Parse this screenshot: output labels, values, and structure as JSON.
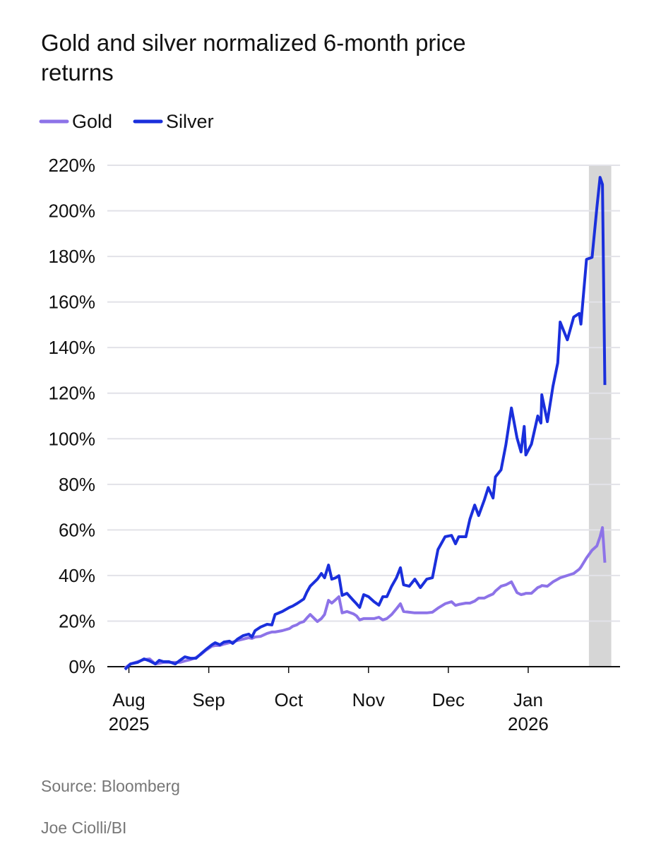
{
  "chart_data": {
    "type": "line",
    "title": "Gold and silver normalized 6-month price returns",
    "source": "Source: Bloomberg",
    "credit": "Joe Ciolli/BI",
    "x": [
      -0.05,
      0.02,
      0.11,
      0.19,
      0.26,
      0.33,
      0.38,
      0.43,
      0.5,
      0.58,
      0.64,
      0.7,
      0.77,
      0.84,
      0.91,
      0.96,
      1.04,
      1.08,
      1.14,
      1.19,
      1.26,
      1.3,
      1.36,
      1.43,
      1.5,
      1.54,
      1.58,
      1.65,
      1.73,
      1.79,
      1.83,
      1.92,
      2.01,
      2.05,
      2.1,
      2.14,
      2.19,
      2.23,
      2.27,
      2.36,
      2.41,
      2.45,
      2.5,
      2.54,
      2.59,
      2.63,
      2.67,
      2.73,
      2.81,
      2.85,
      2.89,
      2.94,
      3.0,
      3.07,
      3.13,
      3.18,
      3.23,
      3.29,
      3.35,
      3.4,
      3.44,
      3.51,
      3.58,
      3.65,
      3.73,
      3.8,
      3.87,
      3.96,
      4.04,
      4.09,
      4.13,
      4.22,
      4.27,
      4.33,
      4.38,
      4.45,
      4.5,
      4.56,
      4.59,
      4.66,
      4.72,
      4.79,
      4.86,
      4.91,
      4.95,
      4.97,
      5.04,
      5.12,
      5.16,
      5.17,
      5.24,
      5.31,
      5.37,
      5.4,
      5.49,
      5.57,
      5.64,
      5.66,
      5.73,
      5.8,
      5.86,
      5.9,
      5.93,
      5.96
    ],
    "series": [
      {
        "name": "Gold",
        "color": "#8d73e8",
        "values": [
          -0.6,
          1.2,
          2.2,
          3.1,
          3.4,
          1.2,
          1.5,
          1.9,
          1.9,
          1.9,
          1.9,
          2.5,
          3.1,
          4.0,
          5.6,
          7.1,
          9.0,
          9.3,
          9.3,
          9.9,
          10.5,
          10.8,
          11.5,
          12.1,
          12.7,
          12.4,
          13.0,
          13.3,
          14.6,
          15.2,
          15.2,
          15.8,
          16.7,
          17.7,
          18.3,
          19.2,
          19.8,
          21.4,
          22.9,
          19.8,
          21.1,
          22.9,
          29.1,
          27.9,
          29.4,
          30.7,
          23.6,
          24.2,
          23.2,
          22.3,
          20.5,
          21.1,
          21.1,
          21.1,
          21.7,
          20.5,
          21.1,
          22.9,
          25.4,
          27.6,
          24.2,
          23.9,
          23.6,
          23.6,
          23.6,
          23.9,
          25.7,
          27.6,
          28.5,
          26.9,
          27.3,
          27.9,
          27.9,
          28.8,
          30.1,
          30.1,
          31.0,
          31.9,
          33.2,
          35.3,
          35.9,
          37.2,
          32.5,
          31.6,
          31.9,
          32.2,
          32.2,
          34.7,
          35.3,
          35.6,
          35.3,
          37.2,
          38.4,
          39.0,
          40.0,
          40.9,
          42.8,
          43.7,
          47.7,
          51.1,
          53.0,
          57.0,
          61.0,
          45.6
        ]
      },
      {
        "name": "Silver",
        "color": "#1a2fdc",
        "values": [
          -1.2,
          1.2,
          1.9,
          3.4,
          2.5,
          1.2,
          2.8,
          2.2,
          2.2,
          1.2,
          2.8,
          4.3,
          3.7,
          3.7,
          5.9,
          7.4,
          9.6,
          10.5,
          9.6,
          10.8,
          11.2,
          10.2,
          12.1,
          13.6,
          14.3,
          13.0,
          15.8,
          17.4,
          18.6,
          18.3,
          22.9,
          24.2,
          26.0,
          26.6,
          27.6,
          28.5,
          29.7,
          32.8,
          35.3,
          38.4,
          40.9,
          39.0,
          44.6,
          38.4,
          39.0,
          39.9,
          31.3,
          32.2,
          29.1,
          27.6,
          26.0,
          31.6,
          30.7,
          28.5,
          27.0,
          30.7,
          30.7,
          35.3,
          39.0,
          43.4,
          35.9,
          35.3,
          38.4,
          34.7,
          38.4,
          39.0,
          51.4,
          57.0,
          57.6,
          53.9,
          57.0,
          57.0,
          64.7,
          70.9,
          66.3,
          73.1,
          78.6,
          74.0,
          83.3,
          86.4,
          97.3,
          113.5,
          100.4,
          94.2,
          105.4,
          92.9,
          97.6,
          110.0,
          106.9,
          119.3,
          107.5,
          123.0,
          133.3,
          151.2,
          143.4,
          153.4,
          155.0,
          150.3,
          178.7,
          179.6,
          201.4,
          214.7,
          211.6,
          123.6
        ]
      }
    ],
    "xlim": [
      -0.27,
      6.15
    ],
    "xticks": [
      {
        "value": 0,
        "label": "Aug 2025"
      },
      {
        "value": 1,
        "label": "Sep"
      },
      {
        "value": 2,
        "label": "Oct"
      },
      {
        "value": 3,
        "label": "Nov"
      },
      {
        "value": 4,
        "label": "Dec"
      },
      {
        "value": 5,
        "label": "Jan 2026"
      }
    ],
    "ylim": [
      0,
      220
    ],
    "yticks": [
      {
        "value": 0,
        "label": "0%"
      },
      {
        "value": 20,
        "label": "20%"
      },
      {
        "value": 40,
        "label": "40%"
      },
      {
        "value": 60,
        "label": "60%"
      },
      {
        "value": 80,
        "label": "80%"
      },
      {
        "value": 100,
        "label": "100%"
      },
      {
        "value": 120,
        "label": "120%"
      },
      {
        "value": 140,
        "label": "140%"
      },
      {
        "value": 160,
        "label": "160%"
      },
      {
        "value": 180,
        "label": "180%"
      },
      {
        "value": 200,
        "label": "200%"
      },
      {
        "value": 220,
        "label": "220%"
      }
    ],
    "grid": true,
    "highlight": {
      "xrange": [
        5.76,
        6.04
      ],
      "color": "#d6d6d6"
    },
    "legend": "top-left"
  }
}
